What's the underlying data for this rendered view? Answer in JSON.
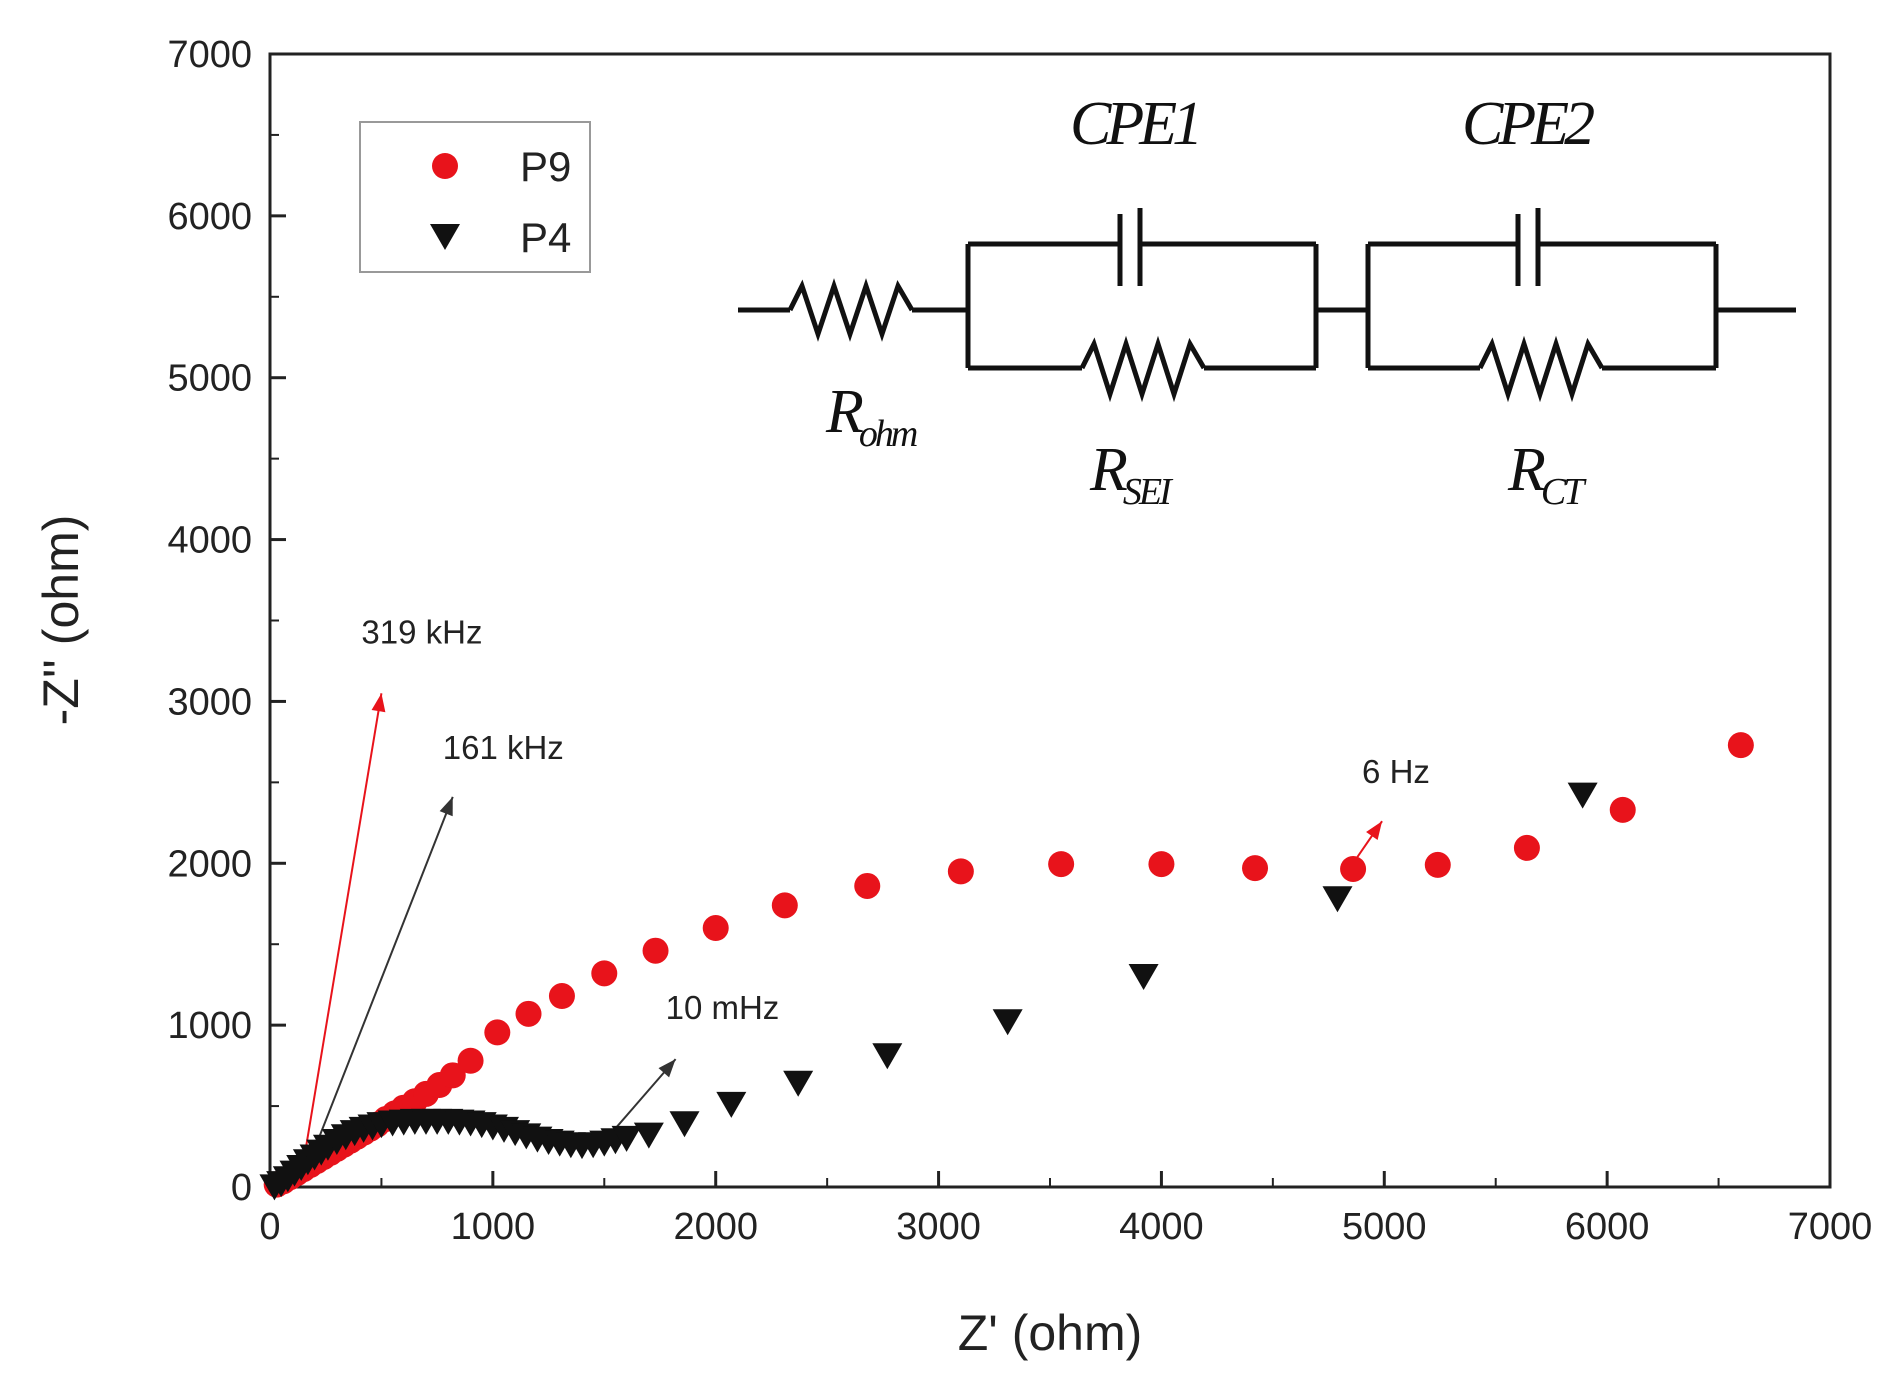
{
  "chart_data": {
    "type": "scatter",
    "title": "",
    "xlabel": "Z' (ohm)",
    "ylabel": "-Z'' (ohm)",
    "xlim": [
      0,
      7000
    ],
    "ylim": [
      0,
      7000
    ],
    "xticks": [
      0,
      1000,
      2000,
      3000,
      4000,
      5000,
      6000,
      7000
    ],
    "yticks": [
      0,
      1000,
      2000,
      3000,
      4000,
      5000,
      6000,
      7000
    ],
    "xtick_labels": [
      "0",
      "1000",
      "2000",
      "3000",
      "4000",
      "5000",
      "6000",
      "7000"
    ],
    "ytick_labels": [
      "0",
      "1000",
      "2000",
      "3000",
      "4000",
      "5000",
      "6000",
      "7000"
    ],
    "legend_position": "top-left",
    "series": [
      {
        "name": "P9",
        "marker": "circle",
        "color": "#e8131b",
        "x": [
          30,
          60,
          90,
          120,
          150,
          180,
          210,
          240,
          270,
          300,
          330,
          360,
          390,
          420,
          450,
          480,
          520,
          560,
          600,
          650,
          700,
          760,
          820,
          900,
          1020,
          1160,
          1310,
          1500,
          1730,
          2000,
          2310,
          2680,
          3100,
          3550,
          4000,
          4420,
          4860,
          5240,
          5640,
          6070,
          6600
        ],
        "y": [
          15,
          35,
          60,
          85,
          110,
          135,
          160,
          185,
          210,
          235,
          260,
          285,
          310,
          335,
          360,
          385,
          420,
          455,
          490,
          530,
          575,
          630,
          690,
          780,
          955,
          1070,
          1180,
          1320,
          1460,
          1600,
          1740,
          1860,
          1950,
          1995,
          1995,
          1970,
          1965,
          1990,
          2095,
          2330,
          2730
        ]
      },
      {
        "name": "P4",
        "marker": "triangle-down",
        "color": "#111111",
        "x": [
          20,
          50,
          80,
          110,
          140,
          170,
          200,
          230,
          260,
          300,
          340,
          380,
          420,
          460,
          500,
          550,
          600,
          650,
          700,
          750,
          800,
          850,
          900,
          950,
          1000,
          1050,
          1100,
          1150,
          1200,
          1250,
          1300,
          1350,
          1400,
          1450,
          1500,
          1550,
          1600,
          1700,
          1860,
          2070,
          2370,
          2770,
          3310,
          3920,
          4790,
          5890
        ],
        "y": [
          10,
          30,
          60,
          95,
          130,
          165,
          195,
          225,
          255,
          290,
          320,
          345,
          365,
          380,
          395,
          405,
          410,
          415,
          415,
          415,
          415,
          410,
          405,
          395,
          380,
          365,
          345,
          325,
          305,
          290,
          280,
          270,
          265,
          270,
          280,
          295,
          310,
          330,
          400,
          520,
          650,
          820,
          1030,
          1310,
          1790,
          2430
        ]
      }
    ],
    "annotations": [
      {
        "text": "319 kHz",
        "color": "#e8131b",
        "arrow_from": [
          150,
          150
        ],
        "arrow_to": [
          500,
          3050
        ]
      },
      {
        "text": "161 kHz",
        "color": "#333333",
        "arrow_from": [
          190,
          200
        ],
        "arrow_to": [
          820,
          2410
        ]
      },
      {
        "text": "10 mHz",
        "color": "#333333",
        "arrow_from": [
          1530,
          330
        ],
        "arrow_to": [
          1820,
          790
        ]
      },
      {
        "text": "6 Hz",
        "color": "#e8131b",
        "arrow_from": [
          4820,
          1920
        ],
        "arrow_to": [
          4990,
          2260
        ]
      }
    ]
  },
  "circuit": {
    "labels": {
      "cpe1": "CPE1",
      "cpe2": "CPE2",
      "r_ohm_main": "R",
      "r_ohm_sub": "ohm",
      "r_sei_main": "R",
      "r_sei_sub": "SEI",
      "r_ct_main": "R",
      "r_ct_sub": "CT"
    }
  },
  "legend": {
    "p9": "P9",
    "p4": "P4"
  }
}
